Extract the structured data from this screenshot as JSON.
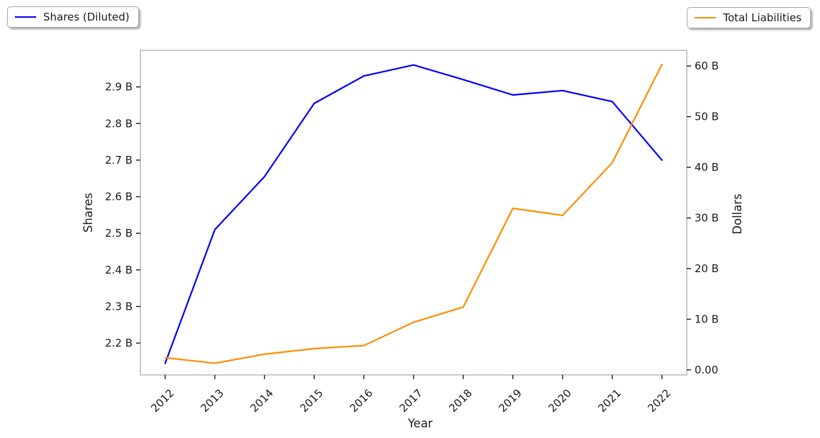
{
  "figure": {
    "background_color": "#ffffff",
    "frame_color": "#cacaca",
    "text_color": "#1a1a1a"
  },
  "chart_data": {
    "type": "line",
    "title": "",
    "xlabel": "Year",
    "grid": false,
    "categories": [
      "2012",
      "2013",
      "2014",
      "2015",
      "2016",
      "2017",
      "2018",
      "2019",
      "2020",
      "2021",
      "2022"
    ],
    "series": [
      {
        "name": "Shares (Diluted)",
        "axis": "left",
        "color": "#0000ff",
        "legend_position": "upper-left-outside",
        "values_billions": [
          2.145,
          2.51,
          2.655,
          2.855,
          2.93,
          2.96,
          2.92,
          2.878,
          2.89,
          2.86,
          2.7
        ]
      },
      {
        "name": "Total Liabilities",
        "axis": "right",
        "color": "#ff8c00",
        "legend_position": "upper-right-outside",
        "values_billions": [
          2.4,
          1.3,
          3.1,
          4.2,
          4.8,
          9.4,
          12.4,
          31.9,
          30.5,
          40.9,
          60.3
        ]
      }
    ],
    "left_axis": {
      "label": "Shares",
      "tick_values": [
        2.2,
        2.3,
        2.4,
        2.5,
        2.6,
        2.7,
        2.8,
        2.9
      ],
      "tick_labels": [
        "2.2 B",
        "2.3 B",
        "2.4 B",
        "2.5 B",
        "2.6 B",
        "2.7 B",
        "2.8 B",
        "2.9 B"
      ],
      "range_billions": [
        2.113,
        3.0
      ]
    },
    "right_axis": {
      "label": "Dollars",
      "tick_values": [
        0,
        10,
        20,
        30,
        40,
        50,
        60
      ],
      "tick_labels": [
        "0.00",
        "10 B",
        "20 B",
        "30 B",
        "40 B",
        "50 B",
        "60 B"
      ],
      "range_billions": [
        -1.0,
        63.1
      ]
    }
  }
}
